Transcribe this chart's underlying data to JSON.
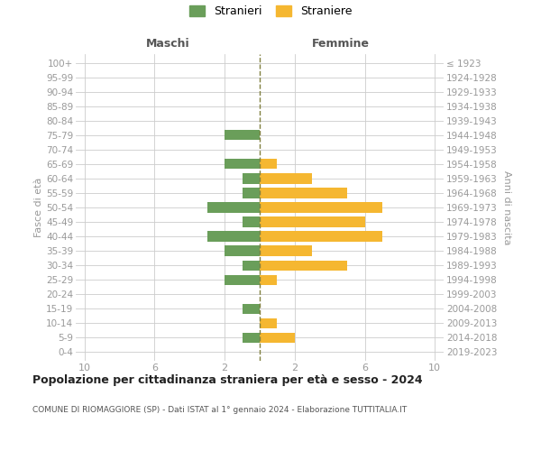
{
  "age_groups": [
    "0-4",
    "5-9",
    "10-14",
    "15-19",
    "20-24",
    "25-29",
    "30-34",
    "35-39",
    "40-44",
    "45-49",
    "50-54",
    "55-59",
    "60-64",
    "65-69",
    "70-74",
    "75-79",
    "80-84",
    "85-89",
    "90-94",
    "95-99",
    "100+"
  ],
  "birth_years": [
    "2019-2023",
    "2014-2018",
    "2009-2013",
    "2004-2008",
    "1999-2003",
    "1994-1998",
    "1989-1993",
    "1984-1988",
    "1979-1983",
    "1974-1978",
    "1969-1973",
    "1964-1968",
    "1959-1963",
    "1954-1958",
    "1949-1953",
    "1944-1948",
    "1939-1943",
    "1934-1938",
    "1929-1933",
    "1924-1928",
    "≤ 1923"
  ],
  "maschi": [
    0,
    1,
    0,
    1,
    0,
    2,
    1,
    2,
    3,
    1,
    3,
    1,
    1,
    2,
    0,
    2,
    0,
    0,
    0,
    0,
    0
  ],
  "femmine": [
    0,
    2,
    1,
    0,
    0,
    1,
    5,
    3,
    7,
    6,
    7,
    5,
    3,
    1,
    0,
    0,
    0,
    0,
    0,
    0,
    0
  ],
  "maschi_color": "#6a9e5a",
  "femmine_color": "#f5b731",
  "center_line_color": "#808040",
  "grid_color": "#cccccc",
  "tick_label_color": "#999999",
  "header_color": "#555555",
  "title": "Popolazione per cittadinanza straniera per età e sesso - 2024",
  "subtitle": "COMUNE DI RIOMAGGIORE (SP) - Dati ISTAT al 1° gennaio 2024 - Elaborazione TUTTITALIA.IT",
  "legend_stranieri": "Stranieri",
  "legend_straniere": "Straniere",
  "xlabel_left": "Maschi",
  "xlabel_right": "Femmine",
  "ylabel_left": "Fasce di età",
  "ylabel_right": "Anni di nascita",
  "xlim": 10,
  "background_color": "#ffffff"
}
